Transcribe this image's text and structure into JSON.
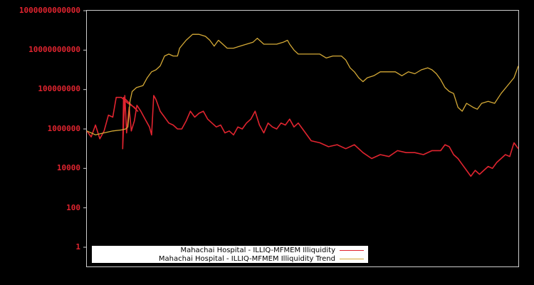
{
  "chart_data": {
    "type": "line",
    "title": "",
    "xlabel": "",
    "ylabel": "",
    "yscale": "log",
    "ylim": [
      0.1,
      1000000000000
    ],
    "grid": false,
    "legend_position": "lower left",
    "y_ticks": [
      {
        "label": "1000000000000",
        "log10": 12
      },
      {
        "label": "10000000000",
        "log10": 10
      },
      {
        "label": "100000000",
        "log10": 8
      },
      {
        "label": "1000000",
        "log10": 6
      },
      {
        "label": "10000",
        "log10": 4
      },
      {
        "label": "100",
        "log10": 2
      },
      {
        "label": "1",
        "log10": 0
      }
    ],
    "x_note": "x axis unlabeled; x values are fractional position 0-1 across plot",
    "series": [
      {
        "name": "Mahachai Hospital - ILLIQ-MFMEM Illiquidity",
        "color": "#e0242f",
        "points_log10": [
          [
            0.0,
            5.9
          ],
          [
            0.01,
            5.6
          ],
          [
            0.02,
            6.2
          ],
          [
            0.03,
            5.5
          ],
          [
            0.04,
            5.9
          ],
          [
            0.05,
            6.7
          ],
          [
            0.06,
            6.6
          ],
          [
            0.068,
            7.6
          ],
          [
            0.08,
            7.6
          ],
          [
            0.095,
            7.3
          ],
          [
            0.11,
            7.1
          ],
          [
            0.118,
            6.9
          ],
          [
            0.085,
            7.6
          ],
          [
            0.083,
            5.0
          ],
          [
            0.088,
            7.7
          ],
          [
            0.092,
            5.8
          ],
          [
            0.098,
            7.1
          ],
          [
            0.103,
            5.9
          ],
          [
            0.11,
            6.4
          ],
          [
            0.116,
            7.2
          ],
          [
            0.125,
            6.9
          ],
          [
            0.135,
            6.5
          ],
          [
            0.145,
            6.1
          ],
          [
            0.15,
            5.7
          ],
          [
            0.155,
            7.7
          ],
          [
            0.16,
            7.5
          ],
          [
            0.17,
            6.9
          ],
          [
            0.18,
            6.6
          ],
          [
            0.19,
            6.3
          ],
          [
            0.2,
            6.2
          ],
          [
            0.21,
            6.0
          ],
          [
            0.22,
            6.0
          ],
          [
            0.23,
            6.4
          ],
          [
            0.24,
            6.9
          ],
          [
            0.25,
            6.6
          ],
          [
            0.26,
            6.8
          ],
          [
            0.27,
            6.9
          ],
          [
            0.28,
            6.5
          ],
          [
            0.29,
            6.3
          ],
          [
            0.3,
            6.1
          ],
          [
            0.31,
            6.2
          ],
          [
            0.32,
            5.8
          ],
          [
            0.33,
            5.9
          ],
          [
            0.34,
            5.7
          ],
          [
            0.35,
            6.1
          ],
          [
            0.36,
            6.0
          ],
          [
            0.37,
            6.3
          ],
          [
            0.38,
            6.5
          ],
          [
            0.39,
            6.9
          ],
          [
            0.4,
            6.2
          ],
          [
            0.41,
            5.8
          ],
          [
            0.42,
            6.3
          ],
          [
            0.43,
            6.1
          ],
          [
            0.44,
            6.0
          ],
          [
            0.45,
            6.3
          ],
          [
            0.46,
            6.2
          ],
          [
            0.47,
            6.5
          ],
          [
            0.48,
            6.1
          ],
          [
            0.49,
            6.3
          ],
          [
            0.5,
            6.0
          ],
          [
            0.52,
            5.4
          ],
          [
            0.54,
            5.3
          ],
          [
            0.56,
            5.1
          ],
          [
            0.58,
            5.2
          ],
          [
            0.6,
            5.0
          ],
          [
            0.62,
            5.2
          ],
          [
            0.64,
            4.8
          ],
          [
            0.66,
            4.5
          ],
          [
            0.68,
            4.7
          ],
          [
            0.7,
            4.6
          ],
          [
            0.72,
            4.9
          ],
          [
            0.74,
            4.8
          ],
          [
            0.76,
            4.8
          ],
          [
            0.78,
            4.7
          ],
          [
            0.8,
            4.9
          ],
          [
            0.82,
            4.9
          ],
          [
            0.83,
            5.2
          ],
          [
            0.84,
            5.1
          ],
          [
            0.85,
            4.7
          ],
          [
            0.86,
            4.5
          ],
          [
            0.87,
            4.2
          ],
          [
            0.88,
            3.9
          ],
          [
            0.89,
            3.6
          ],
          [
            0.9,
            3.9
          ],
          [
            0.91,
            3.7
          ],
          [
            0.92,
            3.9
          ],
          [
            0.93,
            4.1
          ],
          [
            0.94,
            4.0
          ],
          [
            0.95,
            4.3
          ],
          [
            0.96,
            4.5
          ],
          [
            0.97,
            4.7
          ],
          [
            0.98,
            4.6
          ],
          [
            0.99,
            5.3
          ],
          [
            1.0,
            5.0
          ]
        ]
      },
      {
        "name": "Mahachai Hospital - ILLIQ-MFMEM Illiquidity Trend",
        "color": "#d4a936",
        "points_log10": [
          [
            0.0,
            5.9
          ],
          [
            0.01,
            5.8
          ],
          [
            0.02,
            5.7
          ],
          [
            0.04,
            5.8
          ],
          [
            0.06,
            5.9
          ],
          [
            0.08,
            5.95
          ],
          [
            0.09,
            6.0
          ],
          [
            0.095,
            6.1
          ],
          [
            0.1,
            7.4
          ],
          [
            0.105,
            7.9
          ],
          [
            0.115,
            8.1
          ],
          [
            0.13,
            8.2
          ],
          [
            0.14,
            8.6
          ],
          [
            0.15,
            8.9
          ],
          [
            0.16,
            9.0
          ],
          [
            0.17,
            9.2
          ],
          [
            0.18,
            9.7
          ],
          [
            0.19,
            9.8
          ],
          [
            0.2,
            9.7
          ],
          [
            0.21,
            9.7
          ],
          [
            0.215,
            10.1
          ],
          [
            0.23,
            10.5
          ],
          [
            0.245,
            10.8
          ],
          [
            0.26,
            10.8
          ],
          [
            0.275,
            10.7
          ],
          [
            0.285,
            10.5
          ],
          [
            0.295,
            10.2
          ],
          [
            0.305,
            10.5
          ],
          [
            0.315,
            10.3
          ],
          [
            0.325,
            10.1
          ],
          [
            0.34,
            10.1
          ],
          [
            0.355,
            10.2
          ],
          [
            0.37,
            10.3
          ],
          [
            0.385,
            10.4
          ],
          [
            0.395,
            10.6
          ],
          [
            0.41,
            10.3
          ],
          [
            0.425,
            10.3
          ],
          [
            0.44,
            10.3
          ],
          [
            0.455,
            10.4
          ],
          [
            0.465,
            10.5
          ],
          [
            0.47,
            10.3
          ],
          [
            0.48,
            10.0
          ],
          [
            0.49,
            9.8
          ],
          [
            0.5,
            9.8
          ],
          [
            0.52,
            9.8
          ],
          [
            0.54,
            9.8
          ],
          [
            0.555,
            9.6
          ],
          [
            0.57,
            9.7
          ],
          [
            0.59,
            9.7
          ],
          [
            0.6,
            9.5
          ],
          [
            0.61,
            9.1
          ],
          [
            0.62,
            8.9
          ],
          [
            0.63,
            8.6
          ],
          [
            0.64,
            8.4
          ],
          [
            0.65,
            8.6
          ],
          [
            0.665,
            8.7
          ],
          [
            0.68,
            8.9
          ],
          [
            0.7,
            8.9
          ],
          [
            0.715,
            8.9
          ],
          [
            0.73,
            8.7
          ],
          [
            0.745,
            8.9
          ],
          [
            0.76,
            8.8
          ],
          [
            0.775,
            9.0
          ],
          [
            0.79,
            9.1
          ],
          [
            0.8,
            9.0
          ],
          [
            0.81,
            8.8
          ],
          [
            0.82,
            8.5
          ],
          [
            0.83,
            8.1
          ],
          [
            0.84,
            7.9
          ],
          [
            0.85,
            7.8
          ],
          [
            0.86,
            7.1
          ],
          [
            0.87,
            6.9
          ],
          [
            0.88,
            7.3
          ],
          [
            0.895,
            7.1
          ],
          [
            0.905,
            7.0
          ],
          [
            0.915,
            7.3
          ],
          [
            0.93,
            7.4
          ],
          [
            0.945,
            7.3
          ],
          [
            0.96,
            7.8
          ],
          [
            0.975,
            8.2
          ],
          [
            0.99,
            8.6
          ],
          [
            1.0,
            9.2
          ]
        ]
      }
    ]
  },
  "legend": {
    "items": [
      {
        "label": "Mahachai Hospital - ILLIQ-MFMEM Illiquidity",
        "color": "#e0242f"
      },
      {
        "label": "Mahachai Hospital - ILLIQ-MFMEM Illiquidity Trend",
        "color": "#d4a936"
      }
    ]
  },
  "colors": {
    "background": "#000000",
    "axis_frame": "#cccccc",
    "tick_label": "#e0242f"
  }
}
